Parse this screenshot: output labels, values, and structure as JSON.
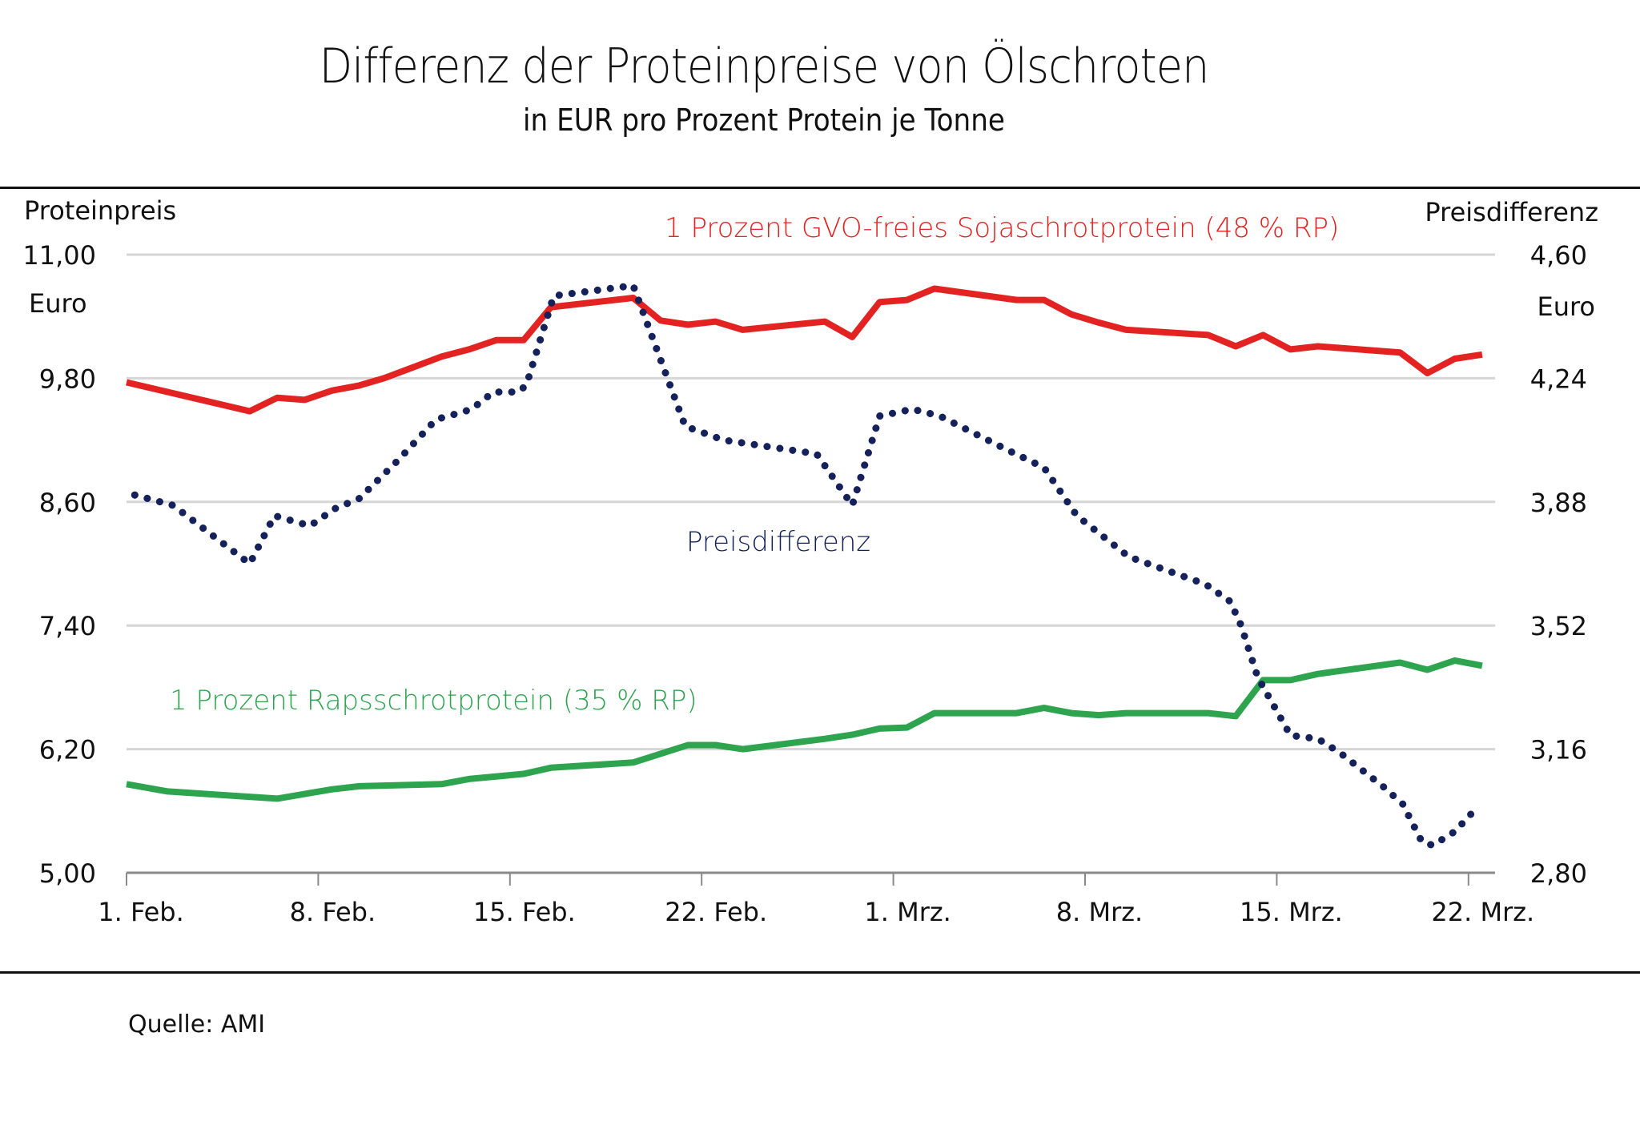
{
  "chart_data": {
    "type": "line",
    "title": "Differenz der Proteinpreise von Ölschroten",
    "subtitle": "in EUR pro Prozent Protein je Tonne",
    "left_axis": {
      "title": "Proteinpreis",
      "unit": "Euro",
      "ylim": [
        5.0,
        11.0
      ],
      "ticks": [
        "11,00",
        "9,80",
        "8,60",
        "7,40",
        "6,20",
        "5,00"
      ],
      "tick_values": [
        11.0,
        9.8,
        8.6,
        7.4,
        6.2,
        5.0
      ]
    },
    "right_axis": {
      "title": "Preisdifferenz",
      "unit": "Euro",
      "ylim": [
        2.8,
        4.6
      ],
      "ticks": [
        "4,60",
        "4,24",
        "3,88",
        "3,52",
        "3,16",
        "2,80"
      ],
      "tick_values": [
        4.6,
        4.24,
        3.88,
        3.52,
        3.16,
        2.8
      ]
    },
    "x_axis": {
      "unit": "days since 1. Feb.",
      "xlim": [
        0,
        50.2
      ],
      "ticks": [
        "1. Feb.",
        "8. Feb.",
        "15. Feb.",
        "22. Feb.",
        "1. Mrz.",
        "8. Mrz.",
        "15. Mrz.",
        "22. Mrz."
      ],
      "tick_values": [
        0,
        7,
        14,
        21,
        28,
        35,
        42,
        49
      ]
    },
    "grid": true,
    "series": [
      {
        "name": "1 Prozent GVO-freies Sojaschrotprotein (48 % RP)",
        "axis": "left",
        "color": "#e32322",
        "style": "solid",
        "x": [
          0,
          4.5,
          5.5,
          6.5,
          7.5,
          8.5,
          9.4,
          11.5,
          12.5,
          13.5,
          14.5,
          15.5,
          18.5,
          19.5,
          20.5,
          21.5,
          22.5,
          25.5,
          26.5,
          27.5,
          28.5,
          29.5,
          32.5,
          33.5,
          34.5,
          35.5,
          36.5,
          39.5,
          40.5,
          41.5,
          42.5,
          43.5,
          46.5,
          47.5,
          48.5,
          49.5
        ],
        "values": [
          9.76,
          9.48,
          9.61,
          9.59,
          9.68,
          9.73,
          9.8,
          10.01,
          10.08,
          10.17,
          10.17,
          10.49,
          10.58,
          10.36,
          10.32,
          10.35,
          10.27,
          10.35,
          10.2,
          10.54,
          10.56,
          10.67,
          10.56,
          10.56,
          10.42,
          10.34,
          10.27,
          10.22,
          10.11,
          10.22,
          10.08,
          10.11,
          10.05,
          9.85,
          9.99,
          10.03
        ]
      },
      {
        "name": "1 Prozent Rapsschrotprotein (35 % RP)",
        "axis": "left",
        "color": "#2ea44f",
        "style": "solid",
        "x": [
          0,
          1.5,
          5.5,
          7.5,
          8.5,
          11.5,
          12.5,
          14.5,
          15.5,
          18.5,
          20.5,
          21.5,
          22.5,
          25.5,
          26.5,
          27.5,
          28.5,
          29.5,
          32.5,
          33.5,
          34.5,
          35.5,
          36.5,
          39.5,
          40.5,
          41.5,
          42.5,
          43.5,
          46.5,
          47.5,
          48.5,
          49.5
        ],
        "values": [
          5.86,
          5.79,
          5.72,
          5.81,
          5.84,
          5.86,
          5.91,
          5.96,
          6.02,
          6.07,
          6.24,
          6.24,
          6.2,
          6.3,
          6.34,
          6.4,
          6.41,
          6.55,
          6.55,
          6.6,
          6.55,
          6.53,
          6.55,
          6.55,
          6.52,
          6.87,
          6.87,
          6.93,
          7.04,
          6.97,
          7.06,
          7.01
        ]
      },
      {
        "name": "Preisdifferenz",
        "axis": "right",
        "color": "#14215a",
        "style": "dotted",
        "x": [
          0.3,
          1.7,
          4.5,
          5.4,
          6.7,
          7.6,
          8.5,
          9.9,
          11.3,
          12.2,
          12.6,
          13.4,
          14.3,
          14.6,
          15.6,
          18.5,
          20.4,
          21.8,
          25.2,
          26.5,
          27.5,
          28.7,
          29.7,
          32.2,
          33.5,
          34.7,
          36.6,
          39.4,
          40.3,
          40.7,
          41.3,
          42.5,
          43.5,
          44.3,
          45.9,
          46.6,
          47.3,
          47.7,
          48.5,
          49.2
        ],
        "values": [
          3.9,
          3.87,
          3.7,
          3.84,
          3.81,
          3.86,
          3.89,
          4.0,
          4.12,
          4.14,
          4.15,
          4.2,
          4.2,
          4.22,
          4.48,
          4.51,
          4.1,
          4.06,
          4.02,
          3.87,
          4.13,
          4.15,
          4.13,
          4.03,
          3.98,
          3.84,
          3.72,
          3.64,
          3.59,
          3.52,
          3.37,
          3.2,
          3.19,
          3.15,
          3.05,
          3.0,
          2.89,
          2.88,
          2.92,
          2.98
        ]
      }
    ],
    "annotations": [
      {
        "text": "1 Prozent GVO-freies Sojaschrotprotein  (48 % RP)",
        "series": 0
      },
      {
        "text": "Preisdifferenz",
        "series": 2
      },
      {
        "text": "1 Prozent Rapsschrotprotein  (35 % RP)",
        "series": 1
      }
    ],
    "legend": "inline-annotations",
    "source": "Quelle: AMI"
  }
}
